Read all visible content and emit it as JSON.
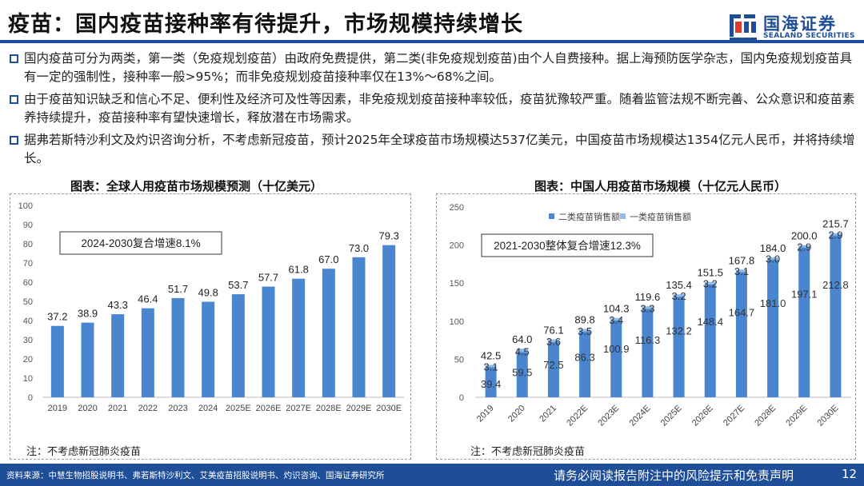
{
  "page": {
    "title": "疫苗：国内疫苗接种率有待提升，市场规模持续增长",
    "logo": {
      "cn": "国海证券",
      "en": "SEALAND SECURITIES",
      "icon": "sealand-logo-icon"
    },
    "bullets": [
      "国内疫苗可分为两类，第一类（免疫规划疫苗）由政府免费提供，第二类(非免疫规划疫苗)由个人自费接种。据上海预防医学杂志，国内免疫规划疫苗具有一定的强制性，接种率一般>95%；而非免疫规划疫苗接种率仅在13%～68%之间。",
      "由于疫苗知识缺乏和信心不足、便利性及经济可及性等因素，非免疫规划疫苗接种率较低，疫苗犹豫较严重。随着监管法规不断完善、公众意识和疫苗素养持续提升，疫苗接种率有望快速增长，释放潜在市场需求。",
      "据弗若斯特沙利文及灼识咨询分析，不考虑新冠疫苗，预计2025年全球疫苗市场规模达537亿美元，中国疫苗市场规模达1354亿元人民币，并将持续增长。"
    ],
    "footer": {
      "source": "资料来源：中慧生物招股说明书、弗若斯特沙利文、艾美疫苗招股说明书、灼识咨询、国海证券研究所",
      "disclaimer": "请务必阅读报告附注中的风险提示和免责声明",
      "page_number": "12"
    },
    "colors": {
      "brand": "#1f4e99",
      "bar": "#4a86d0",
      "bar_light": "#8fbbe8"
    }
  },
  "chart_data": [
    {
      "type": "bar",
      "title": "图表：全球人用疫苗市场规模预测（十亿美元）",
      "categories": [
        "2019",
        "2020",
        "2021",
        "2022",
        "2023",
        "2024",
        "2025E",
        "2026E",
        "2027E",
        "2028E",
        "2029E",
        "2030E"
      ],
      "values": [
        37.2,
        38.9,
        43.3,
        46.4,
        51.7,
        49.8,
        53.7,
        57.7,
        61.8,
        67.0,
        73.0,
        79.3
      ],
      "value_labels": [
        "37.2",
        "38.9",
        "43.3",
        "46.4",
        "51.7",
        "49.8",
        "53.7",
        "57.7",
        "61.8",
        "67.0",
        "73.0",
        "79.3"
      ],
      "ylim": [
        0,
        100
      ],
      "yticks": [
        "0",
        "10",
        "20",
        "30",
        "40",
        "50",
        "60",
        "70",
        "80",
        "90",
        "100"
      ],
      "grid": false,
      "annotation": "2024-2030复合增速8.1%",
      "note": "注：不考虑新冠肺炎疫苗"
    },
    {
      "type": "bar",
      "stacked": true,
      "title": "图表：中国人用疫苗市场规模（十亿元人民币）",
      "categories": [
        "2019",
        "2020",
        "2021",
        "2022E",
        "2023E",
        "2024E",
        "2025E",
        "2026E",
        "2027E",
        "2028E",
        "2029E",
        "2030E"
      ],
      "series": [
        {
          "name": "二类疫苗销售额",
          "values": [
            39.4,
            59.5,
            72.5,
            86.3,
            100.9,
            116.3,
            132.2,
            148.4,
            164.7,
            181.0,
            197.1,
            212.8
          ],
          "labels": [
            "39.4",
            "59.5",
            "72.5",
            "86.3",
            "100.9",
            "116.3",
            "132.2",
            "148.4",
            "164.7",
            "181.0",
            "197.1",
            "212.8"
          ]
        },
        {
          "name": "一类疫苗销售额",
          "values": [
            3.1,
            4.5,
            3.6,
            3.5,
            3.4,
            3.3,
            3.2,
            3.2,
            3.1,
            3.0,
            2.9,
            2.9
          ],
          "labels": [
            "3.1",
            "4.5",
            "3.6",
            "3.5",
            "3.4",
            "3.3",
            "3.2",
            "3.2",
            "3.1",
            "3.0",
            "2.9",
            "2.9"
          ]
        }
      ],
      "totals": [
        42.5,
        64.0,
        76.1,
        89.8,
        104.3,
        119.6,
        135.4,
        151.5,
        167.8,
        184.0,
        200.0,
        215.7
      ],
      "total_labels": [
        "42.5",
        "64.0",
        "76.1",
        "89.8",
        "104.3",
        "119.6",
        "135.4",
        "151.5",
        "167.8",
        "184.0",
        "200.0",
        "215.7"
      ],
      "ylim": [
        0,
        250
      ],
      "yticks": [
        "0",
        "50",
        "100",
        "150",
        "200",
        "250"
      ],
      "grid": false,
      "legend": "top",
      "annotation": "2021-2030整体复合增速12.3%",
      "note": "注：不考虑新冠肺炎疫苗"
    }
  ]
}
